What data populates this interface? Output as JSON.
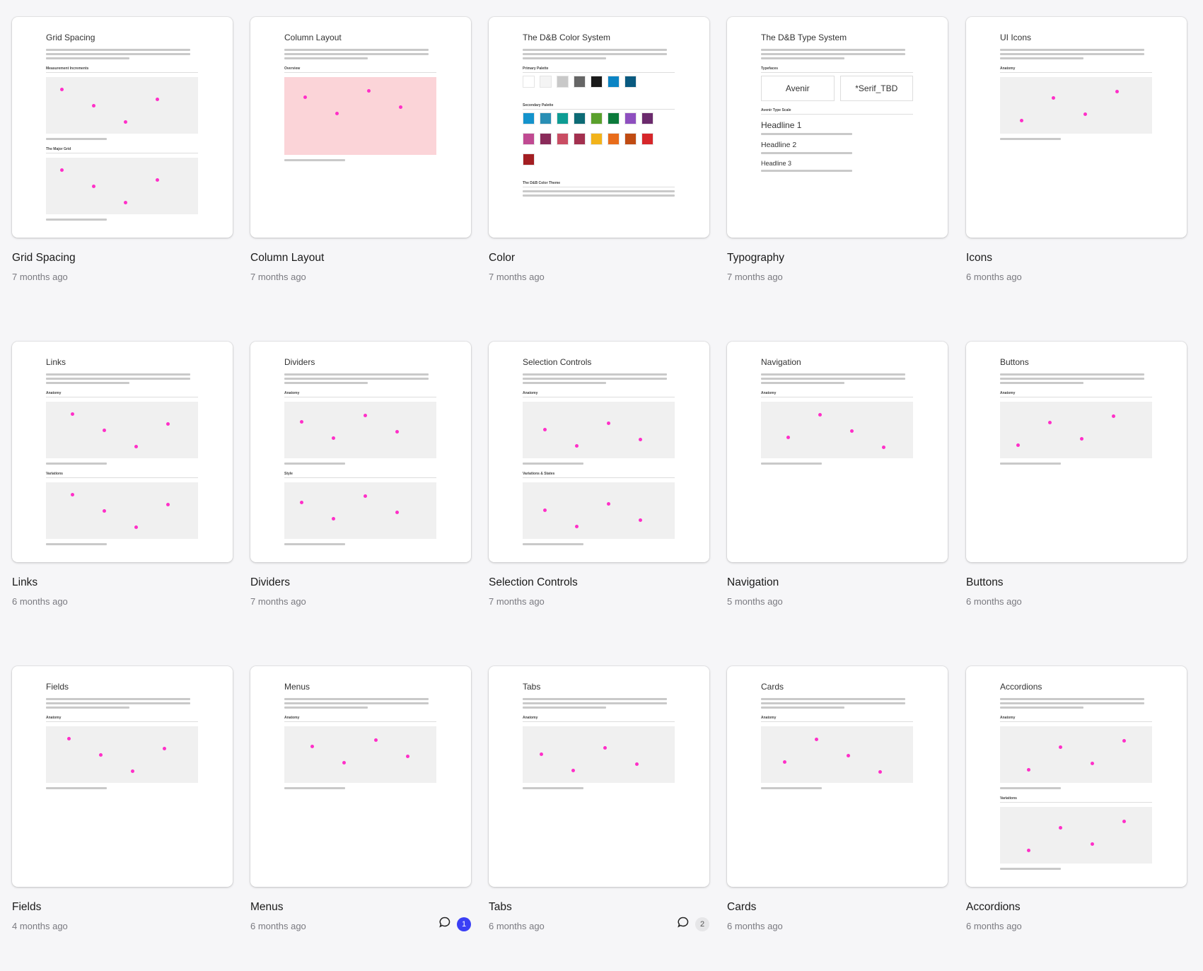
{
  "items": [
    {
      "title": "Grid Spacing",
      "time": "7 months ago",
      "thumb": {
        "heading": "Grid Spacing",
        "sections": [
          "Measurement Increments",
          "The Major Grid"
        ]
      }
    },
    {
      "title": "Column Layout",
      "time": "7 months ago",
      "thumb": {
        "heading": "Column Layout",
        "sections": [
          "Overview"
        ]
      }
    },
    {
      "title": "Color",
      "time": "7 months ago",
      "thumb": {
        "heading": "The D&B Color System",
        "sections": [
          "Primary Palette",
          "Secondary Palette",
          "The D&B Color Theme"
        ]
      }
    },
    {
      "title": "Typography",
      "time": "7 months ago",
      "thumb": {
        "heading": "The D&B Type System",
        "sections": [
          "Typefaces",
          "Avenir Type Scale"
        ],
        "samples": [
          "Avenir",
          "*Serif_TBD",
          "Headline 1",
          "Headline 2",
          "Headline 3"
        ]
      }
    },
    {
      "title": "Icons",
      "time": "6 months ago",
      "thumb": {
        "heading": "UI Icons",
        "sections": [
          "Anatomy"
        ]
      }
    },
    {
      "title": "Links",
      "time": "6 months ago",
      "thumb": {
        "heading": "Links",
        "sections": [
          "Anatomy",
          "Variations"
        ]
      }
    },
    {
      "title": "Dividers",
      "time": "7 months ago",
      "thumb": {
        "heading": "Dividers",
        "sections": [
          "Anatomy",
          "Style"
        ]
      }
    },
    {
      "title": "Selection Controls",
      "time": "7 months ago",
      "thumb": {
        "heading": "Selection Controls",
        "sections": [
          "Anatomy",
          "Variations & States"
        ]
      }
    },
    {
      "title": "Navigation",
      "time": "5 months ago",
      "thumb": {
        "heading": "Navigation",
        "sections": [
          "Anatomy"
        ]
      }
    },
    {
      "title": "Buttons",
      "time": "6 months ago",
      "thumb": {
        "heading": "Buttons",
        "sections": [
          "Anatomy"
        ]
      }
    },
    {
      "title": "Fields",
      "time": "4 months ago",
      "thumb": {
        "heading": "Fields",
        "sections": [
          "Anatomy"
        ]
      }
    },
    {
      "title": "Menus",
      "time": "6 months ago",
      "comments": "1",
      "comments_unread": true,
      "thumb": {
        "heading": "Menus",
        "sections": [
          "Anatomy"
        ]
      }
    },
    {
      "title": "Tabs",
      "time": "6 months ago",
      "comments": "2",
      "comments_unread": false,
      "thumb": {
        "heading": "Tabs",
        "sections": [
          "Anatomy"
        ]
      }
    },
    {
      "title": "Cards",
      "time": "6 months ago",
      "thumb": {
        "heading": "Cards",
        "sections": [
          "Anatomy"
        ]
      }
    },
    {
      "title": "Accordions",
      "time": "6 months ago",
      "thumb": {
        "heading": "Accordions",
        "sections": [
          "Anatomy",
          "Variations"
        ]
      }
    }
  ],
  "colors": {
    "accent": "#3a3ff5",
    "pink": "#ff2fc8",
    "primary_palette": [
      "#ffffff",
      "#f4f4f4",
      "#c8c8c8",
      "#666666",
      "#1a1a1a",
      "#0b84c4",
      "#0a5a80"
    ],
    "secondary_palette": [
      "#1493cc",
      "#2a8fb5",
      "#0e9c93",
      "#0d6b75",
      "#5aa02c",
      "#0c7a3b",
      "#8e4fbf",
      "#6b2a6d",
      "#c04a92",
      "#8a2b5a",
      "#c94d63",
      "#a3304f",
      "#f2b31a",
      "#e86c1b",
      "#c04b12",
      "#d6262a",
      "#a31e22"
    ]
  }
}
